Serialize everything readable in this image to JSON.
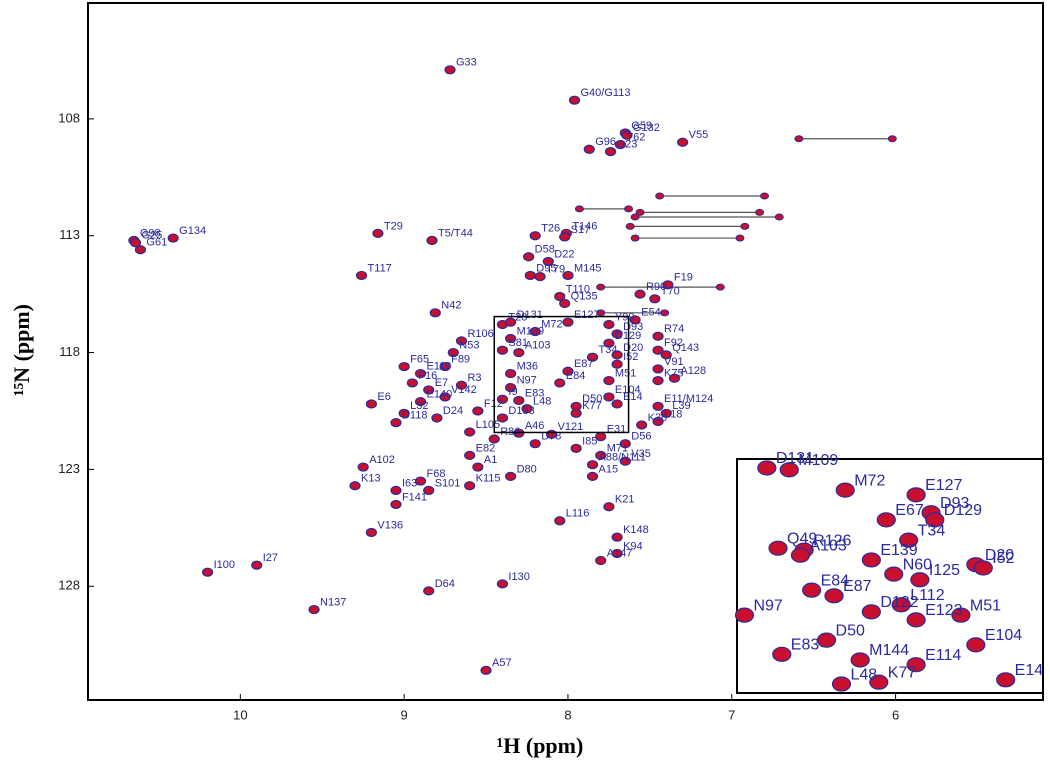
{
  "chart_data": [
    {
      "type": "scatter",
      "x_label": "¹H (ppm)",
      "y_label": "¹⁵N (ppm)",
      "xlim": [
        10.93,
        5.1
      ],
      "ylim": [
        132.87,
        103.04
      ],
      "xticks": [
        10,
        9,
        8,
        7,
        6
      ],
      "yticks": [
        108,
        113,
        118,
        123,
        128
      ],
      "peak_color": "#c8102e",
      "edge_color": "#2a2a9c",
      "label_color": "#2a2a9c",
      "connector_color": "#555555",
      "peaks": [
        {
          "name": "G33",
          "x": 8.72,
          "y": 105.9
        },
        {
          "name": "G40/G113",
          "x": 7.96,
          "y": 107.2
        },
        {
          "name": "G59",
          "x": 7.65,
          "y": 108.6
        },
        {
          "name": "G132",
          "x": 7.64,
          "y": 108.7
        },
        {
          "name": "G96",
          "x": 7.87,
          "y": 109.3
        },
        {
          "name": "T62",
          "x": 7.68,
          "y": 109.1
        },
        {
          "name": "G23",
          "x": 7.74,
          "y": 109.4
        },
        {
          "name": "V55",
          "x": 7.3,
          "y": 109.0
        },
        {
          "name": "G98",
          "x": 10.65,
          "y": 113.2
        },
        {
          "name": "G25",
          "x": 10.64,
          "y": 113.3
        },
        {
          "name": "G61",
          "x": 10.61,
          "y": 113.6
        },
        {
          "name": "G134",
          "x": 10.41,
          "y": 113.1
        },
        {
          "name": "T29",
          "x": 9.16,
          "y": 112.9
        },
        {
          "name": "T5/T44",
          "x": 8.83,
          "y": 113.2
        },
        {
          "name": "T26",
          "x": 8.2,
          "y": 113.0
        },
        {
          "name": "T146",
          "x": 8.01,
          "y": 112.9
        },
        {
          "name": "S17",
          "x": 8.02,
          "y": 113.05
        },
        {
          "name": "T117",
          "x": 9.26,
          "y": 114.7
        },
        {
          "name": "D58",
          "x": 8.24,
          "y": 113.9
        },
        {
          "name": "D22",
          "x": 8.12,
          "y": 114.1
        },
        {
          "name": "D95",
          "x": 8.23,
          "y": 114.7
        },
        {
          "name": "T79",
          "x": 8.17,
          "y": 114.75
        },
        {
          "name": "M145",
          "x": 8.0,
          "y": 114.7
        },
        {
          "name": "F19",
          "x": 7.39,
          "y": 115.1
        },
        {
          "name": "T110",
          "x": 8.05,
          "y": 115.6
        },
        {
          "name": "R90",
          "x": 7.56,
          "y": 115.5
        },
        {
          "name": "Q135",
          "x": 8.02,
          "y": 115.9
        },
        {
          "name": "T70",
          "x": 7.47,
          "y": 115.7
        },
        {
          "name": "N42",
          "x": 8.81,
          "y": 116.3
        },
        {
          "name": "E54",
          "x": 7.59,
          "y": 116.6
        },
        {
          "name": "T28",
          "x": 8.4,
          "y": 116.8
        },
        {
          "name": "D131",
          "x": 8.35,
          "y": 116.7
        },
        {
          "name": "E127",
          "x": 8.0,
          "y": 116.7
        },
        {
          "name": "Y99",
          "x": 7.75,
          "y": 116.8
        },
        {
          "name": "M72",
          "x": 8.2,
          "y": 117.1
        },
        {
          "name": "D93",
          "x": 7.7,
          "y": 117.2
        },
        {
          "name": "M109",
          "x": 8.35,
          "y": 117.4
        },
        {
          "name": "D129",
          "x": 7.75,
          "y": 117.6
        },
        {
          "name": "S81",
          "x": 8.4,
          "y": 117.9
        },
        {
          "name": "A103",
          "x": 8.3,
          "y": 118.0
        },
        {
          "name": "D20",
          "x": 7.7,
          "y": 118.1
        },
        {
          "name": "T34",
          "x": 7.85,
          "y": 118.2
        },
        {
          "name": "I52",
          "x": 7.7,
          "y": 118.5
        },
        {
          "name": "M36",
          "x": 8.35,
          "y": 118.9
        },
        {
          "name": "E87",
          "x": 8.0,
          "y": 118.8
        },
        {
          "name": "M51",
          "x": 7.75,
          "y": 119.2
        },
        {
          "name": "N97",
          "x": 8.35,
          "y": 119.5
        },
        {
          "name": "E84",
          "x": 8.05,
          "y": 119.3
        },
        {
          "name": "E104",
          "x": 7.75,
          "y": 119.9
        },
        {
          "name": "E14",
          "x": 7.7,
          "y": 120.2
        },
        {
          "name": "I9",
          "x": 8.4,
          "y": 120.0
        },
        {
          "name": "E83",
          "x": 8.3,
          "y": 120.05
        },
        {
          "name": "L48",
          "x": 8.25,
          "y": 120.4
        },
        {
          "name": "D50",
          "x": 7.95,
          "y": 120.3
        },
        {
          "name": "K77",
          "x": 7.95,
          "y": 120.6
        },
        {
          "name": "D133",
          "x": 8.4,
          "y": 120.8
        },
        {
          "name": "R74",
          "x": 7.45,
          "y": 117.3
        },
        {
          "name": "F92",
          "x": 7.45,
          "y": 117.9
        },
        {
          "name": "Q143",
          "x": 7.4,
          "y": 118.1
        },
        {
          "name": "N53",
          "x": 8.7,
          "y": 118.0
        },
        {
          "name": "R106",
          "x": 8.65,
          "y": 117.5
        },
        {
          "name": "F65",
          "x": 9.0,
          "y": 118.6
        },
        {
          "name": "E119",
          "x": 8.9,
          "y": 118.9
        },
        {
          "name": "F89",
          "x": 8.75,
          "y": 118.6
        },
        {
          "name": "F16",
          "x": 8.95,
          "y": 119.3
        },
        {
          "name": "R3",
          "x": 8.65,
          "y": 119.4
        },
        {
          "name": "E7",
          "x": 8.85,
          "y": 119.6
        },
        {
          "name": "V142",
          "x": 8.75,
          "y": 119.9
        },
        {
          "name": "V91",
          "x": 7.45,
          "y": 118.7
        },
        {
          "name": "K75",
          "x": 7.45,
          "y": 119.2
        },
        {
          "name": "A128",
          "x": 7.35,
          "y": 119.1
        },
        {
          "name": "E6",
          "x": 9.2,
          "y": 120.2
        },
        {
          "name": "E140",
          "x": 8.9,
          "y": 120.1
        },
        {
          "name": "L32",
          "x": 9.0,
          "y": 120.6
        },
        {
          "name": "D118",
          "x": 9.05,
          "y": 121.0
        },
        {
          "name": "F12",
          "x": 8.55,
          "y": 120.5
        },
        {
          "name": "D24",
          "x": 8.8,
          "y": 120.8
        },
        {
          "name": "E11/M124",
          "x": 7.45,
          "y": 120.3
        },
        {
          "name": "L39",
          "x": 7.4,
          "y": 120.6
        },
        {
          "name": "L18",
          "x": 7.45,
          "y": 120.95
        },
        {
          "name": "K30",
          "x": 7.55,
          "y": 121.1
        },
        {
          "name": "E31",
          "x": 7.8,
          "y": 121.6
        },
        {
          "name": "L105",
          "x": 8.6,
          "y": 121.4
        },
        {
          "name": "R86",
          "x": 8.45,
          "y": 121.7
        },
        {
          "name": "A46",
          "x": 8.3,
          "y": 121.45
        },
        {
          "name": "V121",
          "x": 8.1,
          "y": 121.5
        },
        {
          "name": "D78",
          "x": 8.2,
          "y": 121.9
        },
        {
          "name": "I85",
          "x": 7.95,
          "y": 122.1
        },
        {
          "name": "D56",
          "x": 7.65,
          "y": 121.9
        },
        {
          "name": "M71",
          "x": 7.8,
          "y": 122.4
        },
        {
          "name": "V35",
          "x": 7.65,
          "y": 122.65
        },
        {
          "name": "A88/N111",
          "x": 7.85,
          "y": 122.8
        },
        {
          "name": "A15",
          "x": 7.85,
          "y": 123.3
        },
        {
          "name": "E82",
          "x": 8.6,
          "y": 122.4
        },
        {
          "name": "A1",
          "x": 8.55,
          "y": 122.9
        },
        {
          "name": "D80",
          "x": 8.35,
          "y": 123.3
        },
        {
          "name": "A102",
          "x": 9.25,
          "y": 122.9
        },
        {
          "name": "K13",
          "x": 9.3,
          "y": 123.7
        },
        {
          "name": "F68",
          "x": 8.9,
          "y": 123.5
        },
        {
          "name": "I63",
          "x": 9.05,
          "y": 123.9
        },
        {
          "name": "S101",
          "x": 8.85,
          "y": 123.9
        },
        {
          "name": "K115",
          "x": 8.6,
          "y": 123.7
        },
        {
          "name": "F141",
          "x": 9.05,
          "y": 124.5
        },
        {
          "name": "K21",
          "x": 7.75,
          "y": 124.6
        },
        {
          "name": "L116",
          "x": 8.05,
          "y": 125.2
        },
        {
          "name": "V136",
          "x": 9.2,
          "y": 125.7
        },
        {
          "name": "K148",
          "x": 7.7,
          "y": 125.9
        },
        {
          "name": "K94",
          "x": 7.7,
          "y": 126.6
        },
        {
          "name": "A147",
          "x": 7.8,
          "y": 126.9
        },
        {
          "name": "I100",
          "x": 10.2,
          "y": 127.4
        },
        {
          "name": "I27",
          "x": 9.9,
          "y": 127.1
        },
        {
          "name": "I130",
          "x": 8.4,
          "y": 127.9
        },
        {
          "name": "D64",
          "x": 8.85,
          "y": 128.2
        },
        {
          "name": "N137",
          "x": 9.55,
          "y": 129.0
        },
        {
          "name": "A57",
          "x": 8.5,
          "y": 131.6
        }
      ],
      "connectors": [
        {
          "x": [
            6.59,
            6.02
          ],
          "y": 108.85
        },
        {
          "x": [
            7.44,
            6.8
          ],
          "y": 111.3
        },
        {
          "x": [
            7.93,
            7.63
          ],
          "y": 111.85
        },
        {
          "x": [
            7.56,
            6.83
          ],
          "y": 112.0
        },
        {
          "x": [
            7.59,
            6.71
          ],
          "y": 112.2
        },
        {
          "x": [
            7.62,
            6.92
          ],
          "y": 112.6
        },
        {
          "x": [
            7.59,
            6.95
          ],
          "y": 113.1
        },
        {
          "x": [
            7.8,
            7.07
          ],
          "y": 115.2
        },
        {
          "x": [
            7.8,
            7.41
          ],
          "y": 116.3
        }
      ]
    },
    {
      "type": "scatter",
      "xlim": [
        8.45,
        7.63
      ],
      "ylim": [
        121.42,
        116.46
      ],
      "peak_color": "#c8102e",
      "edge_color": "#2a2a9c",
      "label_color": "#2a2a9c",
      "peaks": [
        {
          "name": "M109",
          "x": 8.31,
          "y": 116.69
        },
        {
          "name": "D131",
          "x": 8.37,
          "y": 116.65
        },
        {
          "name": "M72",
          "x": 8.16,
          "y": 117.12
        },
        {
          "name": "E127",
          "x": 7.97,
          "y": 117.22
        },
        {
          "name": "D93",
          "x": 7.93,
          "y": 117.6
        },
        {
          "name": "D129",
          "x": 7.92,
          "y": 117.75
        },
        {
          "name": "E67",
          "x": 8.05,
          "y": 117.75
        },
        {
          "name": "Q49",
          "x": 8.34,
          "y": 118.35
        },
        {
          "name": "R126",
          "x": 8.27,
          "y": 118.39
        },
        {
          "name": "E139",
          "x": 8.09,
          "y": 118.6
        },
        {
          "name": "T34",
          "x": 7.99,
          "y": 118.18
        },
        {
          "name": "D20",
          "x": 7.81,
          "y": 118.7
        },
        {
          "name": "I52",
          "x": 7.79,
          "y": 118.77
        },
        {
          "name": "A103",
          "x": 8.28,
          "y": 118.5
        },
        {
          "name": "N60",
          "x": 8.03,
          "y": 118.9
        },
        {
          "name": "I125",
          "x": 7.96,
          "y": 119.02
        },
        {
          "name": "N97",
          "x": 8.43,
          "y": 119.77
        },
        {
          "name": "E84",
          "x": 8.25,
          "y": 119.24
        },
        {
          "name": "E87",
          "x": 8.19,
          "y": 119.36
        },
        {
          "name": "L112",
          "x": 8.01,
          "y": 119.55
        },
        {
          "name": "D122",
          "x": 8.09,
          "y": 119.7
        },
        {
          "name": "E123",
          "x": 7.97,
          "y": 119.87
        },
        {
          "name": "M51",
          "x": 7.85,
          "y": 119.77
        },
        {
          "name": "E83",
          "x": 8.33,
          "y": 120.6
        },
        {
          "name": "D50",
          "x": 8.21,
          "y": 120.3
        },
        {
          "name": "M144",
          "x": 8.12,
          "y": 120.72
        },
        {
          "name": "E104",
          "x": 7.81,
          "y": 120.4
        },
        {
          "name": "E114",
          "x": 7.97,
          "y": 120.82
        },
        {
          "name": "L48",
          "x": 8.17,
          "y": 121.23
        },
        {
          "name": "K77",
          "x": 8.07,
          "y": 121.19
        },
        {
          "name": "E14",
          "x": 7.73,
          "y": 121.14
        }
      ]
    }
  ]
}
